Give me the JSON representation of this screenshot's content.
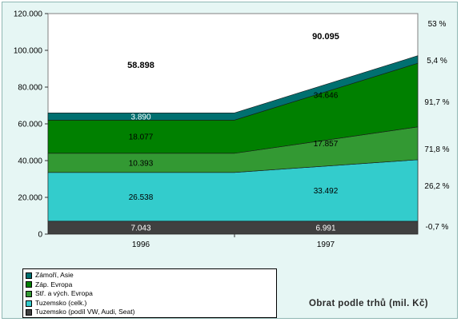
{
  "chart_data": {
    "type": "area",
    "stacked": true,
    "categories": [
      "1996",
      "1997"
    ],
    "ylim": [
      0,
      120000
    ],
    "y_ticks": [
      "0",
      "20.000",
      "40.000",
      "60.000",
      "80.000",
      "100.000",
      "120.000"
    ],
    "grid": false,
    "legend_placement": "bottom-left",
    "series": [
      {
        "name": "Tuzemsko (podíl VW, Audi, Seat)",
        "values": [
          7043,
          6991
        ],
        "labels": [
          "7.043",
          "6.991"
        ],
        "color": "#404040",
        "label_color": "#ffffff",
        "growth": "-0,7 %"
      },
      {
        "name": "Tuzemsko (celk.)",
        "values": [
          26538,
          33492
        ],
        "labels": [
          "26.538",
          "33.492"
        ],
        "color": "#33cccc",
        "label_color": "#000000",
        "growth": "26,2 %"
      },
      {
        "name": "Stř. a vých. Evropa",
        "values": [
          10393,
          17857
        ],
        "labels": [
          "10.393",
          "17.857"
        ],
        "color": "#339933",
        "label_color": "#000000",
        "growth": "71,8 %"
      },
      {
        "name": "Záp. Evropa",
        "values": [
          18077,
          34646
        ],
        "labels": [
          "18.077",
          "34.646"
        ],
        "color": "#008000",
        "label_color": "#000000",
        "growth": "91,7 %"
      },
      {
        "name": "Zámoří, Asie",
        "values": [
          3890,
          4100
        ],
        "labels": [
          "3.890",
          "4.100"
        ],
        "color": "#007070",
        "label_color": "#ffffff",
        "growth": "5,4 %"
      }
    ],
    "totals": {
      "values": [
        58898,
        90095
      ],
      "labels": [
        "58.898",
        "90.095"
      ],
      "growth": "53 %"
    }
  },
  "legend_items": [
    {
      "label": "Zámoří, Asie",
      "color": "#007070"
    },
    {
      "label": "Záp. Evropa",
      "color": "#008000"
    },
    {
      "label": "Stř. a vých. Evropa",
      "color": "#339933"
    },
    {
      "label": "Tuzemsko (celk.)",
      "color": "#33cccc"
    },
    {
      "label": "Tuzemsko (podíl VW, Audi, Seat)",
      "color": "#404040"
    }
  ],
  "footer_title": "Obrat podle trhů (mil. Kč)"
}
